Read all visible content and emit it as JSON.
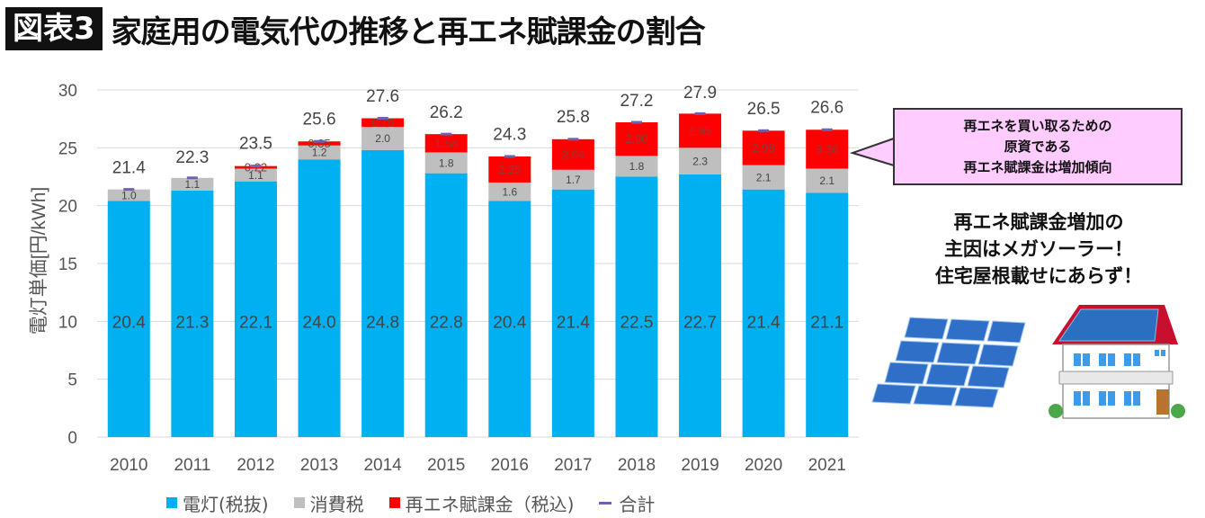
{
  "header": {
    "badge": "図表3",
    "title": "家庭用の電気代の推移と再エネ賦課金の割合"
  },
  "chart_data": {
    "type": "bar",
    "stacked": true,
    "title": "家庭用の電気代の推移と再エネ賦課金の割合",
    "xlabel": "",
    "ylabel": "電灯単価[円/kWh]",
    "ylim": [
      0,
      30
    ],
    "yticks": [
      0,
      5,
      10,
      15,
      20,
      25,
      30
    ],
    "grid": true,
    "legend_position": "bottom",
    "categories": [
      "2010",
      "2011",
      "2012",
      "2013",
      "2014",
      "2015",
      "2016",
      "2017",
      "2018",
      "2019",
      "2020",
      "2021"
    ],
    "series": [
      {
        "name": "電灯(税抜)",
        "color": "#00b0f0",
        "values": [
          20.4,
          21.3,
          22.1,
          24.0,
          24.8,
          22.8,
          20.4,
          21.4,
          22.5,
          22.7,
          21.4,
          21.1
        ],
        "labels": [
          "20.4",
          "21.3",
          "22.1",
          "24.0",
          "24.8",
          "22.8",
          "20.4",
          "21.4",
          "22.5",
          "22.7",
          "21.4",
          "21.1"
        ]
      },
      {
        "name": "消費税",
        "color": "#bfbfbf",
        "values": [
          1.0,
          1.1,
          1.1,
          1.2,
          2.0,
          1.8,
          1.6,
          1.7,
          1.8,
          2.3,
          2.1,
          2.1
        ],
        "labels": [
          "1.0",
          "1.1",
          "1.1",
          "1.2",
          "2.0",
          "1.8",
          "1.6",
          "1.7",
          "1.8",
          "2.3",
          "2.1",
          "2.1"
        ]
      },
      {
        "name": "再エネ賦課金(税込)",
        "color": "#ff0000",
        "values": [
          0,
          0,
          0.22,
          0.35,
          0.75,
          1.58,
          2.25,
          2.64,
          2.9,
          2.95,
          2.98,
          3.36
        ],
        "labels": [
          "",
          "",
          "0.22",
          "0.35",
          "0.75",
          "1.58",
          "2.25",
          "2.64",
          "2.90",
          "2.95",
          "2.98",
          "3.36"
        ]
      }
    ],
    "totals": {
      "name": "合計",
      "color": "#7060b0",
      "values": [
        21.4,
        22.3,
        23.5,
        25.6,
        27.6,
        26.2,
        24.3,
        25.8,
        27.2,
        27.9,
        26.5,
        26.6
      ],
      "labels": [
        "21.4",
        "22.3",
        "23.5",
        "25.6",
        "27.6",
        "26.2",
        "24.3",
        "25.8",
        "27.2",
        "27.9",
        "26.5",
        "26.6"
      ]
    }
  },
  "callout": {
    "lines": [
      "再エネを買い取るための",
      "原資である",
      "再エネ賦課金は増加傾向"
    ]
  },
  "note": {
    "lines": [
      "再エネ賦課金増加の",
      "主因はメガソーラー！",
      "住宅屋根載せにあらず！"
    ]
  },
  "legend": {
    "items": [
      {
        "label": "電灯(税抜)",
        "color": "#00b0f0"
      },
      {
        "label": "消費税",
        "color": "#bfbfbf"
      },
      {
        "label": "再エネ賦課金（税込)",
        "color": "#ff0000"
      },
      {
        "label": "合計",
        "color": "#7060b0"
      }
    ]
  },
  "illustrations": {
    "left": "mega-solar-panels",
    "right": "house-with-rooftop-solar"
  }
}
